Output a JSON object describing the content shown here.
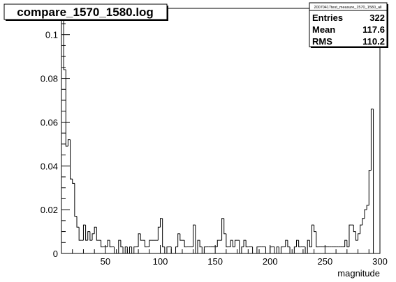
{
  "title": "compare_1570_1580.log",
  "stats_box": {
    "name": "20070417test_measure_1570_1580_all",
    "rows": [
      {
        "label": "Entries",
        "value": "322"
      },
      {
        "label": "Mean",
        "value": "117.6"
      },
      {
        "label": "RMS",
        "value": "110.2"
      }
    ]
  },
  "chart_data": {
    "type": "histogram",
    "xlabel": "magnitude",
    "ylabel": "",
    "xlim": [
      10,
      300
    ],
    "ylim": [
      0,
      0.112
    ],
    "xticks": [
      50,
      100,
      150,
      200,
      250,
      300
    ],
    "xtick_labels": [
      "50",
      "100",
      "150",
      "200",
      "250",
      "300"
    ],
    "yticks": [
      0,
      0.02,
      0.04,
      0.06,
      0.08,
      0.1
    ],
    "ytick_labels": [
      "0",
      "0.02",
      "0.04",
      "0.06",
      "0.08",
      "0.1"
    ],
    "bin_width": 2,
    "x_start": 10,
    "values": [
      0.112,
      0.084,
      0.049,
      0.052,
      0.034,
      0.032,
      0.017,
      0.012,
      0.006,
      0.006,
      0.013,
      0.006,
      0.01,
      0.006,
      0.009,
      0.012,
      0.006,
      0.006,
      0.003,
      0.003,
      0.003,
      0.006,
      0.003,
      0.003,
      0.0,
      0.0,
      0.006,
      0.003,
      0.0,
      0.003,
      0.0,
      0.003,
      0.0,
      0.003,
      0.003,
      0.009,
      0.006,
      0.006,
      0.003,
      0.003,
      0.006,
      0.006,
      0.006,
      0.006,
      0.012,
      0.016,
      0.003,
      0.0,
      0.003,
      0.003,
      0.0,
      0.0,
      0.003,
      0.009,
      0.006,
      0.006,
      0.003,
      0.003,
      0.003,
      0.003,
      0.013,
      0.0,
      0.006,
      0.003,
      0.0,
      0.003,
      0.003,
      0.003,
      0.003,
      0.003,
      0.003,
      0.006,
      0.006,
      0.016,
      0.009,
      0.003,
      0.003,
      0.006,
      0.003,
      0.006,
      0.006,
      0.0,
      0.003,
      0.006,
      0.003,
      0.003,
      0.003,
      0.0,
      0.0,
      0.003,
      0.003,
      0.003,
      0.003,
      0.0,
      0.0,
      0.003,
      0.003,
      0.0,
      0.003,
      0.0,
      0.003,
      0.003,
      0.006,
      0.003,
      0.0,
      0.0,
      0.003,
      0.006,
      0.003,
      0.003,
      0.003,
      0.0,
      0.006,
      0.003,
      0.013,
      0.01,
      0.003,
      0.003,
      0.003,
      0.003,
      0.003,
      0.003,
      0.003,
      0.003,
      0.003,
      0.003,
      0.003,
      0.003,
      0.003,
      0.006,
      0.003,
      0.013,
      0.013,
      0.01,
      0.006,
      0.009,
      0.013,
      0.016,
      0.02,
      0.022,
      0.038,
      0.066
    ]
  }
}
